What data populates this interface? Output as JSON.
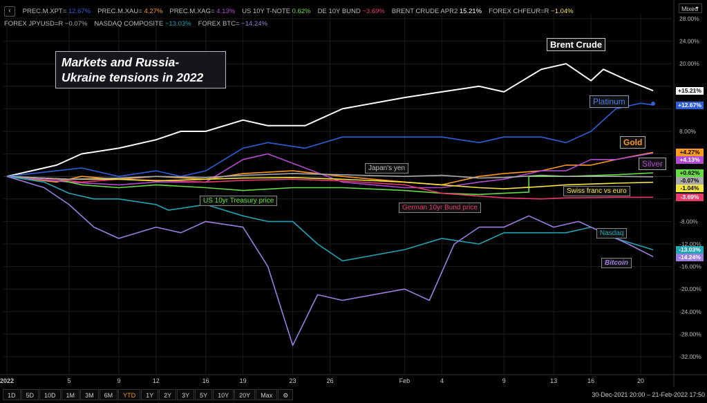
{
  "legend": [
    {
      "name": "PREC.M.XPT=",
      "value": "12.67%",
      "color": "#2e5fd9"
    },
    {
      "name": "PREC.M.XAU=",
      "value": "4.27%",
      "color": "#ff9a1f"
    },
    {
      "name": "PREC.M.XAG=",
      "value": "4.13%",
      "color": "#b24bd1"
    },
    {
      "name": "US 10Y T-NOTE",
      "value": "0.62%",
      "color": "#66dd44"
    },
    {
      "name": "DE 10Y BUND",
      "value": "−3.69%",
      "color": "#e83a6a"
    },
    {
      "name": "BRENT CRUDE APR2",
      "value": "15.21%",
      "color": "#ffffff"
    },
    {
      "name": "FOREX CHFEUR=R",
      "value": "−1.04%",
      "color": "#f5e642"
    },
    {
      "name": "FOREX JPYUSD=R",
      "value": "−0.07%",
      "color": "#aaaaaa"
    },
    {
      "name": "NASDAQ COMPOSITE",
      "value": "−13.03%",
      "color": "#1fa5b3"
    },
    {
      "name": "FOREX BTC=",
      "value": "−14.24%",
      "color": "#9b7ee0"
    }
  ],
  "collapse_icon": "chevron-left-icon",
  "scale_mode": "Mixed",
  "title": "Markets and Russia-Ukraine tensions in 2022",
  "annotations": {
    "brent": "Brent Crude",
    "platinum": "Platinum",
    "gold": "Gold",
    "silver": "Silver",
    "yen": "Japan's yen",
    "treasury": "US 10yr Treasury price",
    "chf": "Swiss franc vs euro",
    "bund": "German 10yr Bund price",
    "nasdaq": "Nasdaq",
    "bitcoin": "Bitcoin"
  },
  "last_values": [
    {
      "text": "+15.21%",
      "value": 15.21,
      "bg": "#ffffff"
    },
    {
      "text": "+12.67%",
      "value": 12.67,
      "bg": "#2e5fd9"
    },
    {
      "text": "+4.27%",
      "value": 4.27,
      "bg": "#ff9a1f"
    },
    {
      "text": "+4.13%",
      "value": 4.13,
      "bg": "#b24bd1"
    },
    {
      "text": "+0.62%",
      "value": 0.62,
      "bg": "#66dd44"
    },
    {
      "text": "-0.07%",
      "value": -0.07,
      "bg": "#aaaaaa"
    },
    {
      "text": "-1.04%",
      "value": -1.04,
      "bg": "#f5e642"
    },
    {
      "text": "-3.69%",
      "value": -3.69,
      "bg": "#e83a6a"
    },
    {
      "text": "-13.03%",
      "value": -13.03,
      "bg": "#1fa5b3"
    },
    {
      "text": "-14.24%",
      "value": -14.24,
      "bg": "#9b7ee0"
    }
  ],
  "range_buttons": [
    "1D",
    "5D",
    "10D",
    "1M",
    "3M",
    "6M",
    "YTD",
    "1Y",
    "2Y",
    "3Y",
    "5Y",
    "10Y",
    "20Y",
    "Max"
  ],
  "active_range": "YTD",
  "settings_icon": "gear-icon",
  "range_text": "30-Dec-2021 20:00 – 21-Feb-2022 17:50",
  "chart_data": {
    "type": "line",
    "x_ticks": [
      "2022",
      "5",
      "9",
      "12",
      "16",
      "19",
      "23",
      "26",
      "Feb",
      "4",
      "9",
      "13",
      "16",
      "20"
    ],
    "y_ticks": [
      "28.00%",
      "24.00%",
      "20.00%",
      "16.00%",
      "12.00%",
      "8.00%",
      "4.00%",
      "0.00%",
      "-4.00%",
      "-8.00%",
      "-12.00%",
      "-16.00%",
      "-20.00%",
      "-24.00%",
      "-28.00%",
      "-32.00%"
    ],
    "ylim": [
      -34,
      29
    ],
    "x_dates": [
      "2021-12-31",
      "2022-01-05",
      "2022-01-09",
      "2022-01-12",
      "2022-01-16",
      "2022-01-19",
      "2022-01-23",
      "2022-01-26",
      "2022-02-01",
      "2022-02-04",
      "2022-02-09",
      "2022-02-13",
      "2022-02-16",
      "2022-02-20"
    ],
    "series": [
      {
        "name": "BRENT CRUDE APR2",
        "color": "#ffffff",
        "points": [
          [
            "2021-12-31",
            0
          ],
          [
            "2022-01-04",
            2
          ],
          [
            "2022-01-06",
            4
          ],
          [
            "2022-01-09",
            5
          ],
          [
            "2022-01-12",
            6.5
          ],
          [
            "2022-01-14",
            8
          ],
          [
            "2022-01-16",
            8
          ],
          [
            "2022-01-19",
            10
          ],
          [
            "2022-01-21",
            9
          ],
          [
            "2022-01-24",
            9
          ],
          [
            "2022-01-27",
            12
          ],
          [
            "2022-02-01",
            14
          ],
          [
            "2022-02-04",
            15
          ],
          [
            "2022-02-07",
            16
          ],
          [
            "2022-02-09",
            15
          ],
          [
            "2022-02-12",
            19
          ],
          [
            "2022-02-14",
            20
          ],
          [
            "2022-02-16",
            17
          ],
          [
            "2022-02-17",
            19
          ],
          [
            "2022-02-19",
            17
          ],
          [
            "2022-02-21",
            15.21
          ]
        ]
      },
      {
        "name": "PREC.M.XPT=",
        "color": "#2e5fd9",
        "points": [
          [
            "2021-12-31",
            0
          ],
          [
            "2022-01-04",
            1
          ],
          [
            "2022-01-06",
            1.5
          ],
          [
            "2022-01-09",
            0
          ],
          [
            "2022-01-12",
            1
          ],
          [
            "2022-01-14",
            0
          ],
          [
            "2022-01-16",
            1
          ],
          [
            "2022-01-19",
            5
          ],
          [
            "2022-01-21",
            6
          ],
          [
            "2022-01-24",
            5
          ],
          [
            "2022-01-27",
            7
          ],
          [
            "2022-02-01",
            7
          ],
          [
            "2022-02-04",
            7
          ],
          [
            "2022-02-07",
            6
          ],
          [
            "2022-02-09",
            7
          ],
          [
            "2022-02-12",
            7
          ],
          [
            "2022-02-14",
            6
          ],
          [
            "2022-02-16",
            8
          ],
          [
            "2022-02-18",
            12
          ],
          [
            "2022-02-20",
            13
          ],
          [
            "2022-02-21",
            12.67
          ]
        ]
      },
      {
        "name": "PREC.M.XAU=",
        "color": "#ff9a1f",
        "points": [
          [
            "2021-12-31",
            0
          ],
          [
            "2022-01-04",
            -1
          ],
          [
            "2022-01-06",
            0
          ],
          [
            "2022-01-09",
            -0.5
          ],
          [
            "2022-01-12",
            0
          ],
          [
            "2022-01-16",
            -0.5
          ],
          [
            "2022-01-19",
            0.5
          ],
          [
            "2022-01-23",
            1
          ],
          [
            "2022-01-27",
            0
          ],
          [
            "2022-02-01",
            -1
          ],
          [
            "2022-02-04",
            -1.5
          ],
          [
            "2022-02-07",
            0
          ],
          [
            "2022-02-09",
            0.5
          ],
          [
            "2022-02-12",
            1
          ],
          [
            "2022-02-14",
            2
          ],
          [
            "2022-02-16",
            2
          ],
          [
            "2022-02-18",
            3
          ],
          [
            "2022-02-21",
            4.27
          ]
        ]
      },
      {
        "name": "PREC.M.XAG=",
        "color": "#b24bd1",
        "points": [
          [
            "2021-12-31",
            0
          ],
          [
            "2022-01-05",
            -1
          ],
          [
            "2022-01-09",
            -1.5
          ],
          [
            "2022-01-12",
            -1
          ],
          [
            "2022-01-16",
            -1
          ],
          [
            "2022-01-19",
            3
          ],
          [
            "2022-01-21",
            4
          ],
          [
            "2022-01-24",
            1.5
          ],
          [
            "2022-01-27",
            -1
          ],
          [
            "2022-02-01",
            -2
          ],
          [
            "2022-02-04",
            -2
          ],
          [
            "2022-02-07",
            -1
          ],
          [
            "2022-02-09",
            -0.5
          ],
          [
            "2022-02-12",
            1
          ],
          [
            "2022-02-14",
            1
          ],
          [
            "2022-02-16",
            3
          ],
          [
            "2022-02-18",
            3
          ],
          [
            "2022-02-21",
            4.13
          ]
        ]
      },
      {
        "name": "US 10Y T-NOTE",
        "color": "#66dd44",
        "points": [
          [
            "2021-12-31",
            0
          ],
          [
            "2022-01-04",
            -0.5
          ],
          [
            "2022-01-06",
            -1.5
          ],
          [
            "2022-01-09",
            -2
          ],
          [
            "2022-01-12",
            -1.5
          ],
          [
            "2022-01-16",
            -2
          ],
          [
            "2022-01-19",
            -2.5
          ],
          [
            "2022-01-23",
            -2
          ],
          [
            "2022-01-27",
            -2
          ],
          [
            "2022-02-01",
            -2.5
          ],
          [
            "2022-02-04",
            -3
          ],
          [
            "2022-02-07",
            -3.2
          ],
          [
            "2022-02-09",
            -3
          ],
          [
            "2022-02-11",
            -2.8
          ],
          [
            "2022-02-11",
            0
          ],
          [
            "2022-02-14",
            0
          ],
          [
            "2022-02-18",
            0.3
          ],
          [
            "2022-02-21",
            0.62
          ]
        ]
      },
      {
        "name": "DE 10Y BUND",
        "color": "#e83a6a",
        "points": [
          [
            "2021-12-31",
            0
          ],
          [
            "2022-01-04",
            -0.5
          ],
          [
            "2022-01-06",
            -1
          ],
          [
            "2022-01-09",
            -0.5
          ],
          [
            "2022-01-12",
            -0.7
          ],
          [
            "2022-01-16",
            -1
          ],
          [
            "2022-01-19",
            -0.7
          ],
          [
            "2022-01-23",
            -0.5
          ],
          [
            "2022-01-27",
            -0.8
          ],
          [
            "2022-02-01",
            -1.5
          ],
          [
            "2022-02-04",
            -3
          ],
          [
            "2022-02-07",
            -3.5
          ],
          [
            "2022-02-09",
            -3.8
          ],
          [
            "2022-02-12",
            -4
          ],
          [
            "2022-02-14",
            -3.8
          ],
          [
            "2022-02-18",
            -3.7
          ],
          [
            "2022-02-21",
            -3.69
          ]
        ]
      },
      {
        "name": "FOREX CHFEUR=R",
        "color": "#f5e642",
        "points": [
          [
            "2021-12-31",
            0
          ],
          [
            "2022-01-05",
            -0.5
          ],
          [
            "2022-01-09",
            -0.5
          ],
          [
            "2022-01-12",
            -0.8
          ],
          [
            "2022-01-16",
            -0.5
          ],
          [
            "2022-01-19",
            -0.3
          ],
          [
            "2022-01-23",
            -0.2
          ],
          [
            "2022-01-27",
            -0.5
          ],
          [
            "2022-02-01",
            -1
          ],
          [
            "2022-02-04",
            -1.5
          ],
          [
            "2022-02-07",
            -2
          ],
          [
            "2022-02-09",
            -2.2
          ],
          [
            "2022-02-12",
            -1.8
          ],
          [
            "2022-02-14",
            -1.5
          ],
          [
            "2022-02-18",
            -1.2
          ],
          [
            "2022-02-21",
            -1.04
          ]
        ]
      },
      {
        "name": "FOREX JPYUSD=R",
        "color": "#aaaaaa",
        "points": [
          [
            "2021-12-31",
            0
          ],
          [
            "2022-01-05",
            -0.5
          ],
          [
            "2022-01-09",
            -0.3
          ],
          [
            "2022-01-12",
            0
          ],
          [
            "2022-01-16",
            -0.2
          ],
          [
            "2022-01-19",
            0.2
          ],
          [
            "2022-01-23",
            0.5
          ],
          [
            "2022-01-27",
            0.3
          ],
          [
            "2022-02-01",
            0
          ],
          [
            "2022-02-04",
            0.2
          ],
          [
            "2022-02-07",
            -0.3
          ],
          [
            "2022-02-09",
            -0.2
          ],
          [
            "2022-02-12",
            0.2
          ],
          [
            "2022-02-14",
            0
          ],
          [
            "2022-02-18",
            0
          ],
          [
            "2022-02-21",
            -0.07
          ]
        ]
      },
      {
        "name": "NASDAQ COMPOSITE",
        "color": "#1fa5b3",
        "points": [
          [
            "2021-12-31",
            0
          ],
          [
            "2022-01-03",
            -1
          ],
          [
            "2022-01-05",
            -3
          ],
          [
            "2022-01-07",
            -4
          ],
          [
            "2022-01-09",
            -4
          ],
          [
            "2022-01-12",
            -5
          ],
          [
            "2022-01-13",
            -6
          ],
          [
            "2022-01-16",
            -5
          ],
          [
            "2022-01-19",
            -7
          ],
          [
            "2022-01-21",
            -8
          ],
          [
            "2022-01-23",
            -8
          ],
          [
            "2022-01-25",
            -12
          ],
          [
            "2022-01-27",
            -15
          ],
          [
            "2022-02-01",
            -13
          ],
          [
            "2022-02-04",
            -11
          ],
          [
            "2022-02-07",
            -12
          ],
          [
            "2022-02-09",
            -10
          ],
          [
            "2022-02-12",
            -10
          ],
          [
            "2022-02-14",
            -10
          ],
          [
            "2022-02-16",
            -9
          ],
          [
            "2022-02-18",
            -11
          ],
          [
            "2022-02-21",
            -13.03
          ]
        ]
      },
      {
        "name": "FOREX BTC=",
        "color": "#9b7ee0",
        "points": [
          [
            "2021-12-31",
            0
          ],
          [
            "2022-01-03",
            -2
          ],
          [
            "2022-01-05",
            -5
          ],
          [
            "2022-01-07",
            -9
          ],
          [
            "2022-01-09",
            -11
          ],
          [
            "2022-01-12",
            -9
          ],
          [
            "2022-01-14",
            -10
          ],
          [
            "2022-01-16",
            -8
          ],
          [
            "2022-01-19",
            -9
          ],
          [
            "2022-01-21",
            -16
          ],
          [
            "2022-01-23",
            -30
          ],
          [
            "2022-01-25",
            -21
          ],
          [
            "2022-01-27",
            -22
          ],
          [
            "2022-02-01",
            -20
          ],
          [
            "2022-02-03",
            -22
          ],
          [
            "2022-02-05",
            -12
          ],
          [
            "2022-02-07",
            -9
          ],
          [
            "2022-02-09",
            -9
          ],
          [
            "2022-02-11",
            -7
          ],
          [
            "2022-02-13",
            -9
          ],
          [
            "2022-02-15",
            -8
          ],
          [
            "2022-02-17",
            -10
          ],
          [
            "2022-02-19",
            -12
          ],
          [
            "2022-02-21",
            -14.24
          ]
        ]
      }
    ]
  }
}
